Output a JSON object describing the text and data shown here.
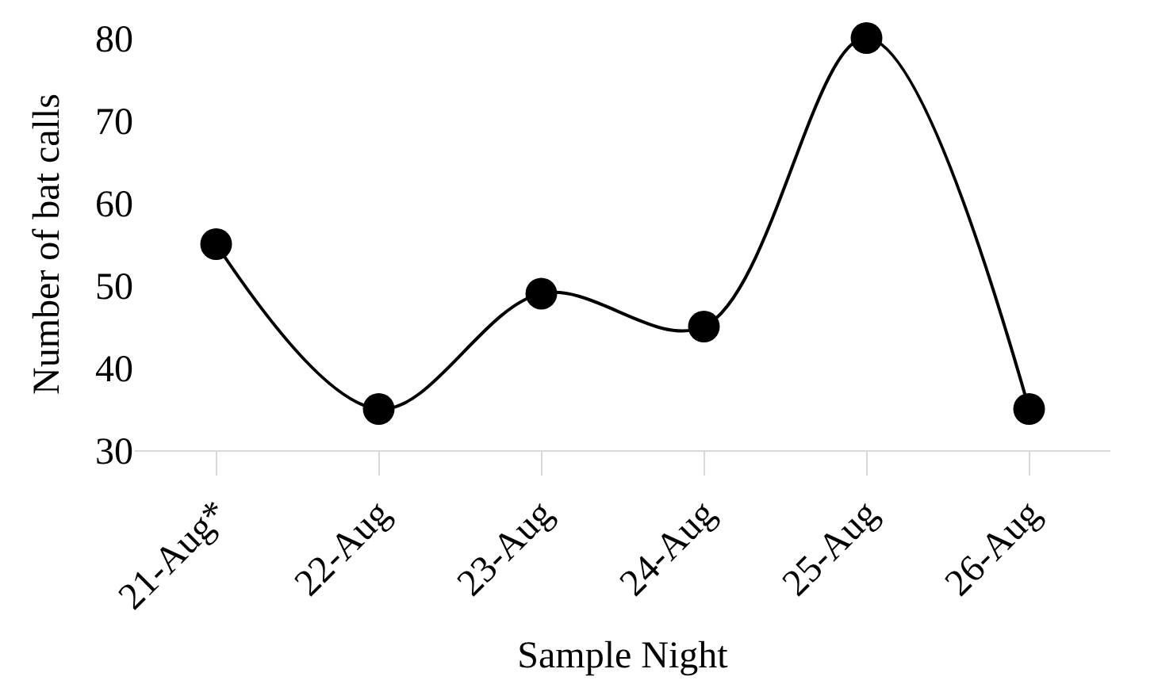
{
  "chart_data": {
    "type": "line",
    "xlabel": "Sample Night",
    "ylabel": "Number of bat calls",
    "categories": [
      "21-Aug*",
      "22-Aug",
      "23-Aug",
      "24-Aug",
      "25-Aug",
      "26-Aug"
    ],
    "series": [
      {
        "color": "#000000",
        "values": [
          55,
          35,
          49,
          45,
          80,
          35
        ]
      }
    ],
    "ylim": [
      30,
      80
    ],
    "yticks": [
      30,
      40,
      50,
      60,
      70,
      80
    ],
    "legend": false,
    "marker": "circle",
    "line_style": "solid"
  }
}
